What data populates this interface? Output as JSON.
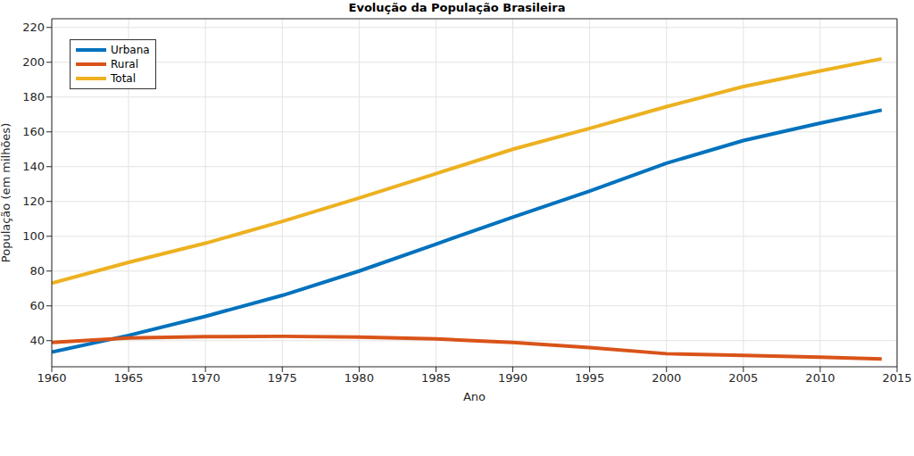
{
  "chart_data": {
    "type": "line",
    "title": "Evolução da População Brasileira",
    "x_label": "Ano",
    "y_label": "População (em milhões)",
    "x": [
      1960,
      1965,
      1970,
      1975,
      1980,
      1985,
      1990,
      1995,
      2000,
      2005,
      2010,
      2014
    ],
    "series": [
      {
        "name": "Urbana",
        "color": "#0072BD",
        "values": [
          33.5,
          43,
          54,
          66,
          80,
          95.5,
          111,
          126,
          142,
          155,
          165,
          172.5
        ]
      },
      {
        "name": "Rural",
        "color": "#D95319",
        "values": [
          39,
          41.5,
          42.3,
          42.5,
          42,
          41,
          39,
          36,
          32.5,
          31.5,
          30.5,
          29.5
        ]
      },
      {
        "name": "Total",
        "color": "#EDB120",
        "values": [
          73,
          85,
          96,
          108.5,
          122,
          136,
          150,
          162,
          174.5,
          186,
          195,
          202
        ]
      }
    ],
    "xlim": [
      1960,
      2015
    ],
    "xticks": [
      1960,
      1965,
      1970,
      1975,
      1980,
      1985,
      1990,
      1995,
      2000,
      2005,
      2010,
      2015
    ],
    "ylim": [
      25,
      225
    ],
    "yticks": [
      40,
      60,
      80,
      100,
      120,
      140,
      160,
      180,
      200,
      220
    ],
    "grid": true,
    "legend": "upper left"
  }
}
